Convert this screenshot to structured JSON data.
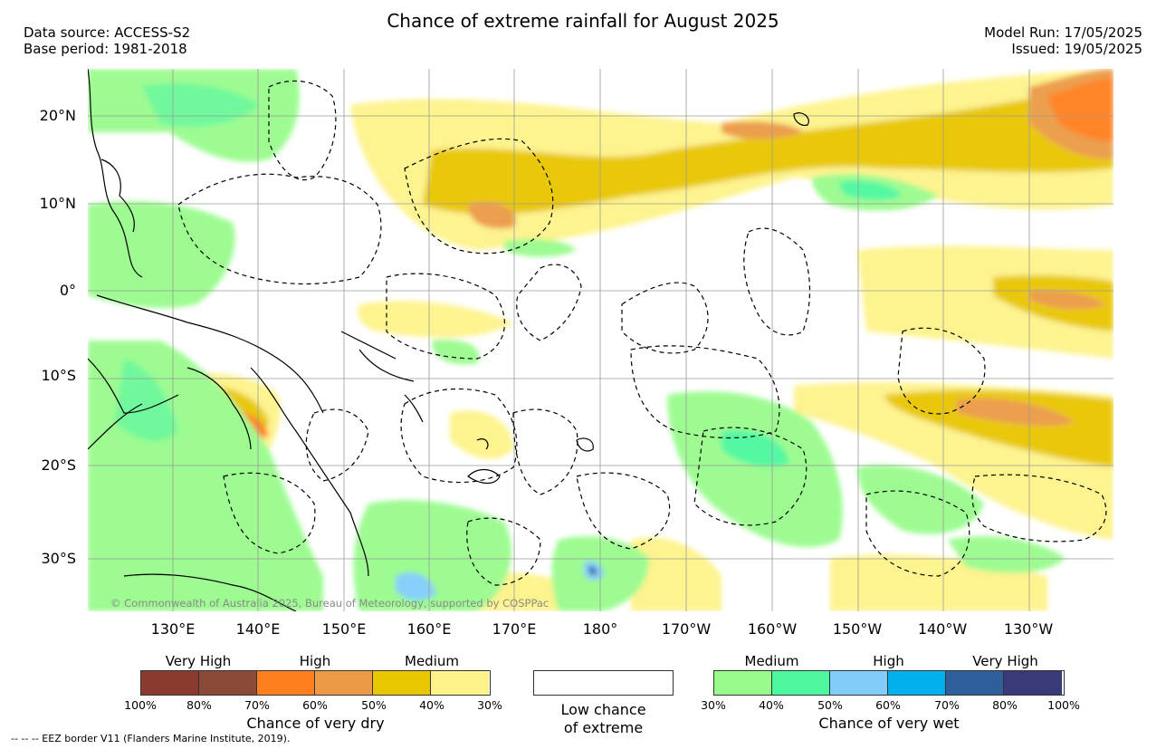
{
  "title": "Chance of extreme rainfall for August 2025",
  "header_left": {
    "source": "Data source: ACCESS-S2",
    "base": "Base period: 1981-2018"
  },
  "header_right": {
    "run": "Model Run: 17/05/2025",
    "issued": "Issued: 19/05/2025"
  },
  "lat_labels": [
    "20°N",
    "10°N",
    "0°",
    "10°S",
    "20°S",
    "30°S"
  ],
  "lon_labels": [
    "130°E",
    "140°E",
    "150°E",
    "160°E",
    "170°E",
    "180°",
    "170°W",
    "160°W",
    "150°W",
    "140°W",
    "130°W"
  ],
  "copyright": "© Commonwealth of Australia 2025, Bureau of Meteorology, supported by COSPPac",
  "legend_dry": {
    "categories": [
      "Very High",
      "High",
      "Medium"
    ],
    "ticks": [
      "100%",
      "80%",
      "70%",
      "60%",
      "50%",
      "40%",
      "30%"
    ],
    "title": "Chance of very dry",
    "colors": [
      "#8b3a2f",
      "#8b4a38",
      "#ff7f1f",
      "#ec9a45",
      "#e8c600",
      "#fdf38a"
    ]
  },
  "legend_low": {
    "line1": "Low chance",
    "line2": "of extreme"
  },
  "legend_wet": {
    "categories": [
      "Medium",
      "High",
      "Very High"
    ],
    "ticks": [
      "30%",
      "40%",
      "50%",
      "60%",
      "70%",
      "80%",
      "100%"
    ],
    "title": "Chance of very wet",
    "colors": [
      "#98fb8c",
      "#4cf79e",
      "#82ccfa",
      "#00b0ec",
      "#2f5f9b",
      "#3a3a78"
    ]
  },
  "footnote": "-- -- -- EEZ border V11 (Flanders Marine Institute, 2019)."
}
